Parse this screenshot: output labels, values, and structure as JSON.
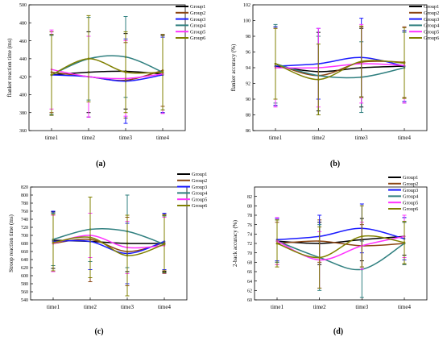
{
  "figure": {
    "panel_labels": [
      "(a)",
      "(b)",
      "(c)",
      "(d)"
    ]
  },
  "chart_data": [
    {
      "type": "line",
      "panel": "(a)",
      "categories": [
        "time1",
        "time2",
        "time3",
        "time4"
      ],
      "xlabel": "",
      "ylabel": "flanker reaction time (ms)",
      "ylim": [
        360,
        500
      ],
      "yticks": [
        360,
        380,
        400,
        420,
        440,
        460,
        480,
        500
      ],
      "grid": false,
      "legend": "top-right",
      "series": [
        {
          "name": "Group1",
          "color": "#000000",
          "values": [
            422,
            425,
            426,
            423
          ],
          "errors": [
            45,
            45,
            42,
            43
          ]
        },
        {
          "name": "Group2",
          "color": "#8b4513",
          "values": [
            425,
            420,
            416,
            427
          ],
          "errors": [
            45,
            45,
            42,
            40
          ]
        },
        {
          "name": "Group3",
          "color": "#1a1aff",
          "values": [
            422,
            420,
            415,
            422
          ],
          "errors": [
            45,
            45,
            47,
            42
          ]
        },
        {
          "name": "Group4",
          "color": "#2f7f7f",
          "values": [
            422,
            440,
            442,
            425
          ],
          "errors": [
            44,
            46,
            45,
            42
          ]
        },
        {
          "name": "Group5",
          "color": "#ff33ff",
          "values": [
            428,
            420,
            418,
            423
          ],
          "errors": [
            44,
            45,
            42,
            44
          ]
        },
        {
          "name": "Group6",
          "color": "#808000",
          "values": [
            422,
            440,
            425,
            425
          ],
          "errors": [
            45,
            48,
            45,
            42
          ]
        }
      ]
    },
    {
      "type": "line",
      "panel": "(b)",
      "categories": [
        "time1",
        "time2",
        "time3",
        "time4"
      ],
      "xlabel": "",
      "ylabel": "flanker accuracy (%)",
      "ylim": [
        86,
        102
      ],
      "yticks": [
        86,
        88,
        90,
        92,
        94,
        96,
        98,
        100,
        102
      ],
      "grid": false,
      "legend": "top-right",
      "series": [
        {
          "name": "Group1",
          "color": "#000000",
          "values": [
            94.2,
            93.5,
            94.0,
            94.2
          ],
          "errors": [
            5.0,
            5.0,
            5.0,
            4.5
          ]
        },
        {
          "name": "Group2",
          "color": "#8b4513",
          "values": [
            94.5,
            93.0,
            94.7,
            94.7
          ],
          "errors": [
            4.5,
            5.0,
            4.5,
            4.5
          ]
        },
        {
          "name": "Group3",
          "color": "#1a1aff",
          "values": [
            94.2,
            94.5,
            95.3,
            94.2
          ],
          "errors": [
            5.0,
            4.5,
            5.0,
            4.5
          ]
        },
        {
          "name": "Group4",
          "color": "#2f7f7f",
          "values": [
            94.5,
            93.0,
            92.8,
            94.0
          ],
          "errors": [
            5.0,
            5.0,
            4.5,
            4.5
          ]
        },
        {
          "name": "Group5",
          "color": "#ff33ff",
          "values": [
            94.0,
            94.0,
            94.5,
            94.3
          ],
          "errors": [
            5.0,
            5.0,
            5.0,
            4.8
          ]
        },
        {
          "name": "Group6",
          "color": "#808000",
          "values": [
            94.5,
            92.5,
            94.8,
            94.6
          ],
          "errors": [
            4.5,
            4.5,
            4.5,
            4.5
          ]
        }
      ]
    },
    {
      "type": "line",
      "panel": "(c)",
      "categories": [
        "time1",
        "time2",
        "time3",
        "time4"
      ],
      "xlabel": "",
      "ylabel": "Stroop reaction time (ms)",
      "ylim": [
        540,
        820
      ],
      "yticks": [
        540,
        560,
        580,
        600,
        620,
        640,
        660,
        680,
        700,
        720,
        740,
        760,
        780,
        800,
        820
      ],
      "grid": false,
      "legend": "top-right",
      "series": [
        {
          "name": "Group1",
          "color": "#000000",
          "values": [
            688,
            685,
            680,
            680
          ],
          "errors": [
            70,
            70,
            70,
            70
          ]
        },
        {
          "name": "Group2",
          "color": "#8b4513",
          "values": [
            680,
            690,
            660,
            682
          ],
          "errors": [
            70,
            105,
            85,
            70
          ]
        },
        {
          "name": "Group3",
          "color": "#1a1aff",
          "values": [
            685,
            685,
            655,
            685
          ],
          "errors": [
            75,
            70,
            75,
            70
          ]
        },
        {
          "name": "Group4",
          "color": "#2f7f7f",
          "values": [
            690,
            715,
            710,
            678
          ],
          "errors": [
            65,
            80,
            90,
            70
          ]
        },
        {
          "name": "Group5",
          "color": "#ff33ff",
          "values": [
            680,
            700,
            670,
            675
          ],
          "errors": [
            70,
            55,
            65,
            70
          ]
        },
        {
          "name": "Group6",
          "color": "#808000",
          "values": [
            682,
            695,
            650,
            678
          ],
          "errors": [
            70,
            100,
            100,
            72
          ]
        }
      ]
    },
    {
      "type": "line",
      "panel": "(d)",
      "categories": [
        "time1",
        "time2",
        "time3",
        "time4"
      ],
      "xlabel": "",
      "ylabel": "2-back accuracy (%)",
      "ylim": [
        60,
        84
      ],
      "yticks": [
        60,
        62,
        64,
        66,
        68,
        70,
        72,
        74,
        76,
        78,
        80,
        82
      ],
      "grid": false,
      "legend": "top-right",
      "series": [
        {
          "name": "Group1",
          "color": "#000000",
          "values": [
            72.5,
            72.0,
            72.8,
            73.5
          ],
          "errors": [
            4.5,
            4.5,
            4.5,
            4.0
          ]
        },
        {
          "name": "Group2",
          "color": "#8b4513",
          "values": [
            72.0,
            72.5,
            71.5,
            72.0
          ],
          "errors": [
            4.5,
            4.5,
            4.5,
            4.5
          ]
        },
        {
          "name": "Group3",
          "color": "#1a1aff",
          "values": [
            72.8,
            73.5,
            75.2,
            73.0
          ],
          "errors": [
            4.5,
            4.5,
            5.2,
            4.5
          ]
        },
        {
          "name": "Group4",
          "color": "#2f7f7f",
          "values": [
            72.5,
            69.0,
            66.5,
            72.0
          ],
          "errors": [
            4.5,
            7.0,
            6.0,
            4.5
          ]
        },
        {
          "name": "Group5",
          "color": "#ff33ff",
          "values": [
            72.5,
            68.5,
            71.5,
            73.5
          ],
          "errors": [
            5.0,
            6.0,
            5.0,
            4.5
          ]
        },
        {
          "name": "Group6",
          "color": "#808000",
          "values": [
            72.0,
            69.0,
            73.5,
            72.2
          ],
          "errors": [
            5.0,
            6.5,
            6.5,
            4.5
          ]
        }
      ]
    }
  ]
}
